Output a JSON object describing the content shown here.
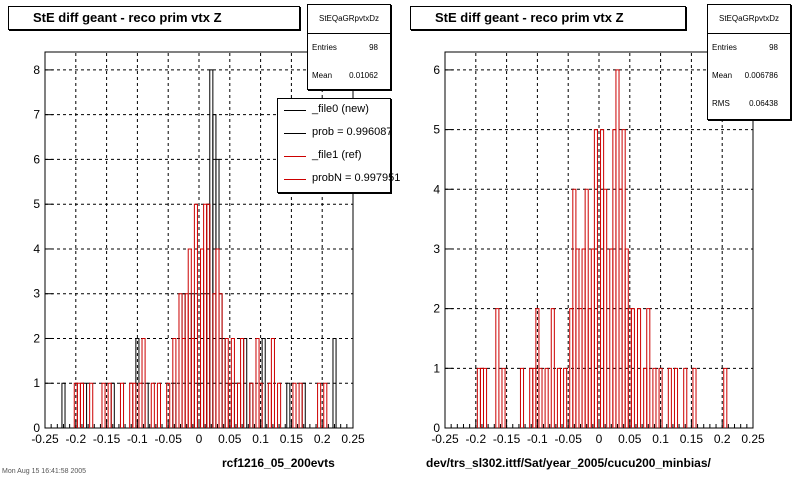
{
  "colors": {
    "ref": "#cc0000",
    "new": "#000000"
  },
  "panels": [
    {
      "title": "StE  diff geant - reco prim vtx Z",
      "stats": {
        "name": "StEQaGRpvtxDz",
        "rows": [
          {
            "label": "Entries",
            "value": "98"
          },
          {
            "label": "Mean",
            "value": "0.01062"
          }
        ]
      },
      "legend": [
        {
          "text": "_file0 (new)",
          "color": "#000000"
        },
        {
          "text": "prob = 0.996087",
          "color": "#000000"
        },
        {
          "text": "_file1 (ref)",
          "color": "#cc0000"
        },
        {
          "text": "probN = 0.997951",
          "color": "#cc0000"
        }
      ],
      "bottom_label": "rcf1216_05_200evts",
      "footnote": "Mon Aug 15 16:41:58 2005"
    },
    {
      "title": "StE  diff geant - reco prim vtx Z",
      "stats": {
        "name": "StEQaGRpvtxDz",
        "rows": [
          {
            "label": "Entries",
            "value": "98"
          },
          {
            "label": "Mean",
            "value": "0.006786"
          },
          {
            "label": "RMS",
            "value": "0.06438"
          }
        ]
      },
      "bottom_label": "dev/trs_sl302.ittf/Sat/year_2005/cucu200_minbias/"
    }
  ],
  "chart_data": [
    {
      "type": "histogram",
      "title": "StE  diff geant - reco prim vtx Z",
      "xlabel": "rcf1216_05_200evts",
      "xlim": [
        -0.25,
        0.25
      ],
      "ylim": [
        0,
        8.4
      ],
      "xticks": [
        "-0.25",
        "-0.2",
        "-0.15",
        "-0.1",
        "-0.05",
        "0",
        "0.05",
        "0.1",
        "0.15",
        "0.2",
        "0.25"
      ],
      "yticks": [
        "0",
        "1",
        "2",
        "3",
        "4",
        "5",
        "6",
        "7",
        "8"
      ],
      "grid": true,
      "legend_position": "top-right",
      "bin_width": 0.005,
      "series": [
        {
          "name": "_file0 (new)",
          "color": "#000000",
          "bins": [
            {
              "x": -0.22,
              "y": 1
            },
            {
              "x": -0.185,
              "y": 1
            },
            {
              "x": -0.14,
              "y": 1
            },
            {
              "x": -0.1,
              "y": 2
            },
            {
              "x": -0.085,
              "y": 1
            },
            {
              "x": -0.04,
              "y": 1
            },
            {
              "x": -0.025,
              "y": 3
            },
            {
              "x": -0.01,
              "y": 3
            },
            {
              "x": 0.0,
              "y": 1
            },
            {
              "x": 0.01,
              "y": 3
            },
            {
              "x": 0.015,
              "y": 5
            },
            {
              "x": 0.02,
              "y": 8
            },
            {
              "x": 0.025,
              "y": 7
            },
            {
              "x": 0.03,
              "y": 6
            },
            {
              "x": 0.035,
              "y": 3
            },
            {
              "x": 0.04,
              "y": 2
            },
            {
              "x": 0.06,
              "y": 1
            },
            {
              "x": 0.075,
              "y": 2
            },
            {
              "x": 0.085,
              "y": 1
            },
            {
              "x": 0.105,
              "y": 2
            },
            {
              "x": 0.145,
              "y": 1
            },
            {
              "x": 0.17,
              "y": 1
            },
            {
              "x": 0.22,
              "y": 2
            }
          ]
        },
        {
          "name": "_file1 (ref)",
          "color": "#cc0000",
          "bins": [
            {
              "x": -0.2,
              "y": 1
            },
            {
              "x": -0.195,
              "y": 1
            },
            {
              "x": -0.19,
              "y": 1
            },
            {
              "x": -0.175,
              "y": 1
            },
            {
              "x": -0.155,
              "y": 1
            },
            {
              "x": -0.145,
              "y": 1
            },
            {
              "x": -0.125,
              "y": 1
            },
            {
              "x": -0.11,
              "y": 1
            },
            {
              "x": -0.105,
              "y": 1
            },
            {
              "x": -0.095,
              "y": 1
            },
            {
              "x": -0.09,
              "y": 2
            },
            {
              "x": -0.075,
              "y": 1
            },
            {
              "x": -0.065,
              "y": 1
            },
            {
              "x": -0.05,
              "y": 1
            },
            {
              "x": -0.04,
              "y": 2
            },
            {
              "x": -0.03,
              "y": 3
            },
            {
              "x": -0.025,
              "y": 2
            },
            {
              "x": -0.02,
              "y": 3
            },
            {
              "x": -0.015,
              "y": 4
            },
            {
              "x": -0.01,
              "y": 2
            },
            {
              "x": -0.005,
              "y": 5
            },
            {
              "x": 0.005,
              "y": 4
            },
            {
              "x": 0.01,
              "y": 5
            },
            {
              "x": 0.015,
              "y": 5
            },
            {
              "x": 0.025,
              "y": 3
            },
            {
              "x": 0.03,
              "y": 4
            },
            {
              "x": 0.035,
              "y": 3
            },
            {
              "x": 0.045,
              "y": 2
            },
            {
              "x": 0.05,
              "y": 1
            },
            {
              "x": 0.055,
              "y": 2
            },
            {
              "x": 0.065,
              "y": 1
            },
            {
              "x": 0.07,
              "y": 2
            },
            {
              "x": 0.085,
              "y": 1
            },
            {
              "x": 0.095,
              "y": 2
            },
            {
              "x": 0.1,
              "y": 1
            },
            {
              "x": 0.115,
              "y": 1
            },
            {
              "x": 0.12,
              "y": 2
            },
            {
              "x": 0.13,
              "y": 1
            },
            {
              "x": 0.155,
              "y": 1
            },
            {
              "x": 0.165,
              "y": 1
            },
            {
              "x": 0.195,
              "y": 1
            },
            {
              "x": 0.205,
              "y": 1
            }
          ]
        }
      ]
    },
    {
      "type": "histogram",
      "title": "StE  diff geant - reco prim vtx Z",
      "xlabel": "dev/trs_sl302.ittf/Sat/year_2005/cucu200_minbias/",
      "xlim": [
        -0.25,
        0.25
      ],
      "ylim": [
        0,
        6.3
      ],
      "xticks": [
        "-0.25",
        "-0.2",
        "-0.15",
        "-0.1",
        "-0.05",
        "0",
        "0.05",
        "0.1",
        "0.15",
        "0.2",
        "0.25"
      ],
      "yticks": [
        "0",
        "1",
        "2",
        "3",
        "4",
        "5",
        "6"
      ],
      "grid": true,
      "bin_width": 0.005,
      "series": [
        {
          "color": "#cc0000",
          "bins": [
            {
              "x": -0.195,
              "y": 1
            },
            {
              "x": -0.19,
              "y": 1
            },
            {
              "x": -0.185,
              "y": 1
            },
            {
              "x": -0.165,
              "y": 2
            },
            {
              "x": -0.155,
              "y": 1
            },
            {
              "x": -0.125,
              "y": 1
            },
            {
              "x": -0.11,
              "y": 1
            },
            {
              "x": -0.105,
              "y": 1
            },
            {
              "x": -0.1,
              "y": 2
            },
            {
              "x": -0.095,
              "y": 1
            },
            {
              "x": -0.085,
              "y": 1
            },
            {
              "x": -0.075,
              "y": 2
            },
            {
              "x": -0.065,
              "y": 1
            },
            {
              "x": -0.055,
              "y": 1
            },
            {
              "x": -0.045,
              "y": 2
            },
            {
              "x": -0.04,
              "y": 4
            },
            {
              "x": -0.035,
              "y": 3
            },
            {
              "x": -0.03,
              "y": 2
            },
            {
              "x": -0.025,
              "y": 3
            },
            {
              "x": -0.02,
              "y": 4
            },
            {
              "x": -0.015,
              "y": 2
            },
            {
              "x": -0.01,
              "y": 3
            },
            {
              "x": -0.005,
              "y": 5
            },
            {
              "x": 0.005,
              "y": 5
            },
            {
              "x": 0.01,
              "y": 4
            },
            {
              "x": 0.02,
              "y": 3
            },
            {
              "x": 0.025,
              "y": 5
            },
            {
              "x": 0.03,
              "y": 6
            },
            {
              "x": 0.035,
              "y": 4
            },
            {
              "x": 0.04,
              "y": 5
            },
            {
              "x": 0.045,
              "y": 3
            },
            {
              "x": 0.05,
              "y": 2
            },
            {
              "x": 0.055,
              "y": 2
            },
            {
              "x": 0.065,
              "y": 2
            },
            {
              "x": 0.075,
              "y": 1
            },
            {
              "x": 0.08,
              "y": 2
            },
            {
              "x": 0.09,
              "y": 1
            },
            {
              "x": 0.1,
              "y": 1
            },
            {
              "x": 0.115,
              "y": 1
            },
            {
              "x": 0.125,
              "y": 1
            },
            {
              "x": 0.14,
              "y": 1
            },
            {
              "x": 0.155,
              "y": 1
            },
            {
              "x": 0.205,
              "y": 1
            }
          ]
        }
      ]
    }
  ]
}
